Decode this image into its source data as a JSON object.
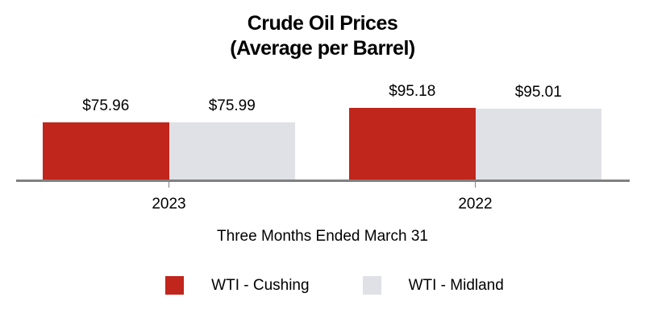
{
  "chart_data": {
    "type": "bar",
    "title": "Crude Oil Prices",
    "subtitle": "(Average per Barrel)",
    "xlabel": "Three Months Ended March 31",
    "categories": [
      "2023",
      "2022"
    ],
    "series": [
      {
        "name": "WTI - Cushing",
        "color": "#c0261b",
        "values": [
          75.96,
          95.18
        ],
        "labels": [
          "$75.96",
          "$95.18"
        ]
      },
      {
        "name": "WTI - Midland",
        "color": "#e0e1e6",
        "values": [
          75.99,
          95.01
        ],
        "labels": [
          "$75.99",
          "$95.01"
        ]
      }
    ],
    "grid": false,
    "y_axis_visible": false,
    "legend_position": "bottom",
    "axis_color": "#808080",
    "text_color": "#000000",
    "background_color": "#ffffff"
  }
}
